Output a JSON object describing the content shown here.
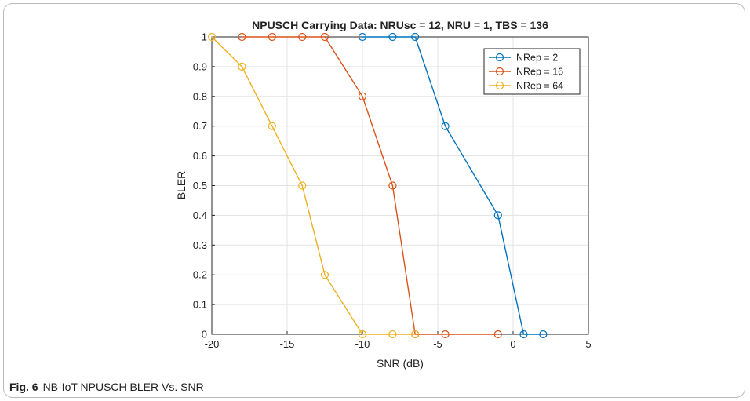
{
  "caption": {
    "figure_label": "Fig. 6",
    "text": "NB-IoT NPUSCH BLER Vs. SNR"
  },
  "chart_data": {
    "type": "line",
    "title": "NPUSCH Carrying Data: NRUsc = 12, NRU = 1, TBS = 136",
    "xlabel": "SNR (dB)",
    "ylabel": "BLER",
    "xlim": [
      -20,
      5
    ],
    "ylim": [
      0,
      1
    ],
    "xticks": [
      -20,
      -15,
      -10,
      -5,
      0,
      5
    ],
    "yticks": [
      0,
      0.1,
      0.2,
      0.3,
      0.4,
      0.5,
      0.6,
      0.7,
      0.8,
      0.9,
      1
    ],
    "grid": true,
    "legend_position": "top-right",
    "marker": "circle",
    "series": [
      {
        "name": "NRep = 2",
        "color": "#0072BD",
        "x": [
          -10,
          -8,
          -6.5,
          -4.5,
          -1,
          0.7,
          2
        ],
        "y": [
          1,
          1,
          1,
          0.7,
          0.4,
          0,
          0
        ]
      },
      {
        "name": "NRep = 16",
        "color": "#D95319",
        "x": [
          -18,
          -16,
          -14,
          -12.5,
          -10,
          -8,
          -6.5,
          -4.5,
          -1
        ],
        "y": [
          1,
          1,
          1,
          1,
          0.8,
          0.5,
          0,
          0,
          0
        ]
      },
      {
        "name": "NRep = 64",
        "color": "#EDB120",
        "x": [
          -20,
          -18,
          -16,
          -14,
          -12.5,
          -10,
          -8,
          -6.5
        ],
        "y": [
          1,
          0.9,
          0.7,
          0.5,
          0.2,
          0,
          0,
          0
        ]
      }
    ]
  }
}
